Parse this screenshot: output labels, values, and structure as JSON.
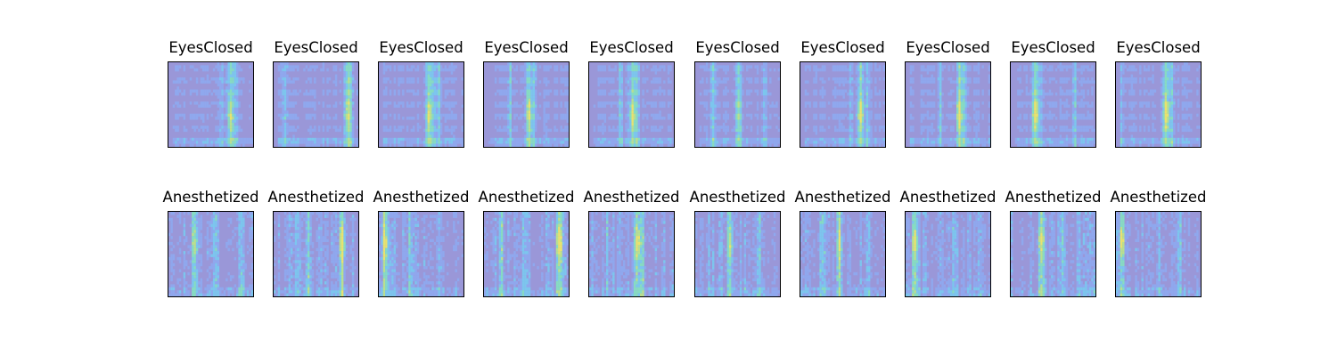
{
  "figure": {
    "background": "#ffffff",
    "rows": [
      {
        "row_label": "EyesClosed",
        "titles": [
          "EyesClosed",
          "EyesClosed",
          "EyesClosed",
          "EyesClosed",
          "EyesClosed",
          "EyesClosed",
          "EyesClosed",
          "EyesClosed",
          "EyesClosed",
          "EyesClosed"
        ]
      },
      {
        "row_label": "Anesthetized",
        "titles": [
          "Anesthetized",
          "Anesthetized",
          "Anesthetized",
          "Anesthetized",
          "Anesthetized",
          "Anesthetized",
          "Anesthetized",
          "Anesthetized",
          "Anesthetized",
          "Anesthetized"
        ]
      }
    ]
  },
  "chart_data": {
    "type": "heatmap",
    "description_rows": 2,
    "description_cols": 10,
    "colormap": [
      "#9a97d8",
      "#8fa8ee",
      "#7cc6ee",
      "#86dcc2",
      "#b9e08f",
      "#e8e36e"
    ],
    "ticks": "none",
    "panels": [
      {
        "row": 0,
        "col": 0,
        "title": "EyesClosed",
        "hot_columns": [
          0.72,
          0.78,
          0.62
        ],
        "peak": 0.55
      },
      {
        "row": 0,
        "col": 1,
        "title": "EyesClosed",
        "hot_columns": [
          0.86,
          0.9,
          0.12
        ],
        "peak": 0.45
      },
      {
        "row": 0,
        "col": 2,
        "title": "EyesClosed",
        "hot_columns": [
          0.58,
          0.64,
          0.7
        ],
        "peak": 0.6
      },
      {
        "row": 0,
        "col": 3,
        "title": "EyesClosed",
        "hot_columns": [
          0.52,
          0.58,
          0.3
        ],
        "peak": 0.65
      },
      {
        "row": 0,
        "col": 4,
        "title": "EyesClosed",
        "hot_columns": [
          0.5,
          0.56,
          0.36
        ],
        "peak": 0.75
      },
      {
        "row": 0,
        "col": 5,
        "title": "EyesClosed",
        "hot_columns": [
          0.5,
          0.2,
          0.8
        ],
        "peak": 0.4
      },
      {
        "row": 0,
        "col": 6,
        "title": "EyesClosed",
        "hot_columns": [
          0.7,
          0.78,
          0.58
        ],
        "peak": 0.8
      },
      {
        "row": 0,
        "col": 7,
        "title": "EyesClosed",
        "hot_columns": [
          0.62,
          0.68,
          0.4
        ],
        "peak": 0.78
      },
      {
        "row": 0,
        "col": 8,
        "title": "EyesClosed",
        "hot_columns": [
          0.28,
          0.34,
          0.74
        ],
        "peak": 0.82
      },
      {
        "row": 0,
        "col": 9,
        "title": "EyesClosed",
        "hot_columns": [
          0.58,
          0.64,
          0.04
        ],
        "peak": 0.8
      },
      {
        "row": 1,
        "col": 0,
        "title": "Anesthetized",
        "hot_columns": [
          0.3,
          0.55,
          0.85
        ],
        "peak": 0.55
      },
      {
        "row": 1,
        "col": 1,
        "title": "Anesthetized",
        "hot_columns": [
          0.8,
          0.4,
          0.25
        ],
        "peak": 0.9
      },
      {
        "row": 1,
        "col": 2,
        "title": "Anesthetized",
        "hot_columns": [
          0.06,
          0.35,
          0.7
        ],
        "peak": 0.8
      },
      {
        "row": 1,
        "col": 3,
        "title": "Anesthetized",
        "hot_columns": [
          0.88,
          0.45,
          0.2
        ],
        "peak": 0.85
      },
      {
        "row": 1,
        "col": 4,
        "title": "Anesthetized",
        "hot_columns": [
          0.56,
          0.62,
          0.2
        ],
        "peak": 0.8
      },
      {
        "row": 1,
        "col": 5,
        "title": "Anesthetized",
        "hot_columns": [
          0.4,
          0.15,
          0.75
        ],
        "peak": 0.55
      },
      {
        "row": 1,
        "col": 6,
        "title": "Anesthetized",
        "hot_columns": [
          0.45,
          0.25,
          0.8
        ],
        "peak": 0.6
      },
      {
        "row": 1,
        "col": 7,
        "title": "Anesthetized",
        "hot_columns": [
          0.1,
          0.55,
          0.85
        ],
        "peak": 0.55
      },
      {
        "row": 1,
        "col": 8,
        "title": "Anesthetized",
        "hot_columns": [
          0.35,
          0.6,
          0.8
        ],
        "peak": 0.6
      },
      {
        "row": 1,
        "col": 9,
        "title": "Anesthetized",
        "hot_columns": [
          0.06,
          0.5,
          0.75
        ],
        "peak": 0.8
      }
    ]
  }
}
